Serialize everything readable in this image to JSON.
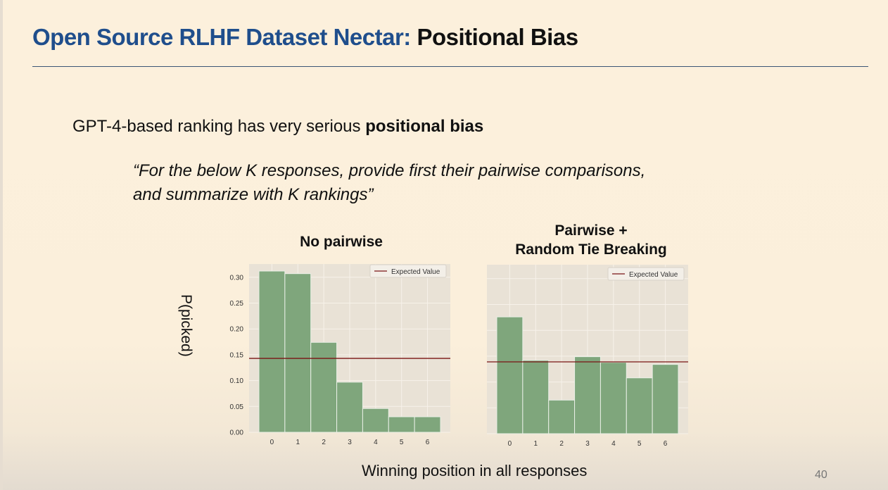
{
  "slide": {
    "title_part1": "Open Source RLHF Dataset Nectar:",
    "title_part2": "Positional Bias",
    "subtitle_text": "GPT-4-based ranking has very serious ",
    "subtitle_bold": "positional bias",
    "quote_line1": "“For the below K responses, provide first their pairwise comparisons,",
    "quote_line2": "and summarize with K rankings”",
    "ylabel": "P(picked)",
    "xlabel": "Winning position in all responses",
    "page_number": "40"
  },
  "colors": {
    "title_blue": "#1f4e8c",
    "bar_fill": "#7fa67c",
    "plot_bg": "#e9e2d6",
    "expected_line": "#7a1414"
  },
  "chart_data": [
    {
      "type": "bar",
      "title": "No pairwise",
      "categories": [
        "0",
        "1",
        "2",
        "3",
        "4",
        "5",
        "6"
      ],
      "values": [
        0.312,
        0.307,
        0.174,
        0.097,
        0.046,
        0.03,
        0.03
      ],
      "expected_value": 0.143,
      "legend": "Expected Value",
      "legend_position": "top-right",
      "ylim": [
        0,
        0.32
      ],
      "yticks": [
        "0.00",
        "0.05",
        "0.10",
        "0.15",
        "0.20",
        "0.25",
        "0.30"
      ],
      "grid": true
    },
    {
      "type": "bar",
      "title": "Pairwise +\nRandom Tie Breaking",
      "title_line1": "Pairwise +",
      "title_line2": "Random Tie Breaking",
      "categories": [
        "0",
        "1",
        "2",
        "3",
        "4",
        "5",
        "6"
      ],
      "values": [
        0.226,
        0.142,
        0.065,
        0.149,
        0.138,
        0.108,
        0.134
      ],
      "expected_value": 0.139,
      "legend": "Expected Value",
      "legend_position": "top-right",
      "ylim": [
        0,
        0.32
      ],
      "grid": true
    }
  ]
}
